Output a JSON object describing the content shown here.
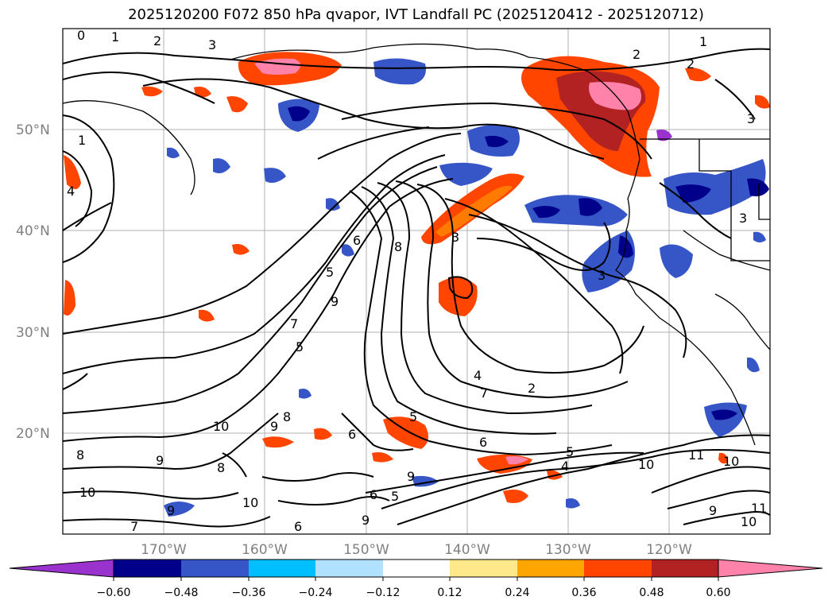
{
  "title": "2025120200 F072 850 hPa qvapor, IVT Landfall PC (2025120412 - 2025120712)",
  "map": {
    "lat_labels": [
      "50°N",
      "40°N",
      "30°N",
      "20°N"
    ],
    "lon_labels": [
      "170°W",
      "160°W",
      "150°W",
      "140°W",
      "130°W",
      "120°W"
    ],
    "contour_labels": [
      "0",
      "1",
      "2",
      "3",
      "1",
      "2",
      "3",
      "1",
      "4",
      "8",
      "6",
      "7",
      "5",
      "9",
      "5",
      "10",
      "9",
      "8",
      "9",
      "8",
      "10",
      "7",
      "9",
      "6",
      "6",
      "5",
      "5",
      "6",
      "9",
      "8",
      "10",
      "9",
      "4",
      "2",
      "3",
      "3",
      "2",
      "4",
      "5",
      "7",
      "6",
      "3",
      "10",
      "11",
      "10",
      "9",
      "10",
      "11"
    ]
  },
  "colorbar": {
    "ticks": [
      "−0.60",
      "−0.48",
      "−0.36",
      "−0.24",
      "−0.12",
      "0.12",
      "0.24",
      "0.36",
      "0.48",
      "0.60"
    ],
    "colors": [
      "#9a32cd",
      "#00008b",
      "#3656c8",
      "#00bfff",
      "#b0e2ff",
      "#ffffff",
      "#ffe88a",
      "#ffa500",
      "#ff4500",
      "#b22222",
      "#ff82ab"
    ]
  }
}
